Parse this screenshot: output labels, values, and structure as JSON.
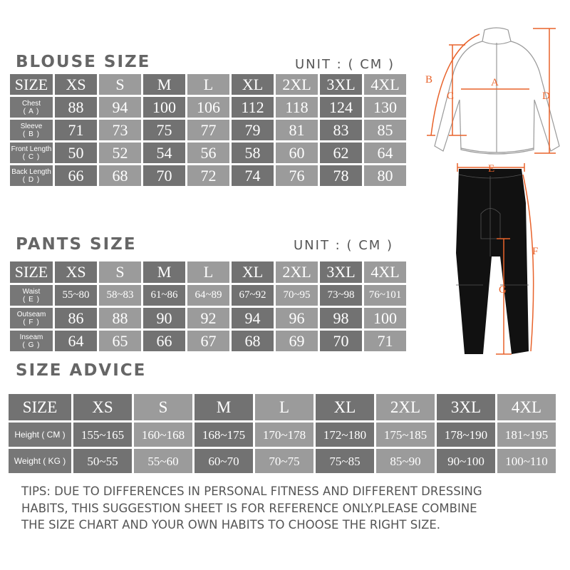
{
  "blouse": {
    "title": "BLOUSE SIZE",
    "unit": "UNIT : ( CM )",
    "header": [
      "SIZE",
      "XS",
      "S",
      "M",
      "L",
      "XL",
      "2XL",
      "3XL",
      "4XL"
    ],
    "rows": [
      {
        "label": "Chest",
        "code": "( A )",
        "values": [
          "88",
          "94",
          "100",
          "106",
          "112",
          "118",
          "124",
          "130"
        ]
      },
      {
        "label": "Sleeve",
        "code": "( B )",
        "values": [
          "71",
          "73",
          "75",
          "77",
          "79",
          "81",
          "83",
          "85"
        ]
      },
      {
        "label": "Front Length",
        "code": "( C )",
        "values": [
          "50",
          "52",
          "54",
          "56",
          "58",
          "60",
          "62",
          "64"
        ]
      },
      {
        "label": "Back Length",
        "code": "( D )",
        "values": [
          "66",
          "68",
          "70",
          "72",
          "74",
          "76",
          "78",
          "80"
        ]
      }
    ]
  },
  "pants": {
    "title": "PANTS SIZE",
    "unit": "UNIT : ( CM )",
    "header": [
      "SIZE",
      "XS",
      "S",
      "M",
      "L",
      "XL",
      "2XL",
      "3XL",
      "4XL"
    ],
    "rows": [
      {
        "label": "Waist",
        "code": "( E )",
        "values": [
          "55~80",
          "58~83",
          "61~86",
          "64~89",
          "67~92",
          "70~95",
          "73~98",
          "76~101"
        ]
      },
      {
        "label": "Outseam",
        "code": "( F )",
        "values": [
          "86",
          "88",
          "90",
          "92",
          "94",
          "96",
          "98",
          "100"
        ]
      },
      {
        "label": "Inseam",
        "code": "( G )",
        "values": [
          "64",
          "65",
          "66",
          "67",
          "68",
          "69",
          "70",
          "71"
        ]
      }
    ]
  },
  "advice": {
    "title": "SIZE ADVICE",
    "header": [
      "SIZE",
      "XS",
      "S",
      "M",
      "L",
      "XL",
      "2XL",
      "3XL",
      "4XL"
    ],
    "rows": [
      {
        "label": "Height ( CM )",
        "values": [
          "155~165",
          "160~168",
          "168~175",
          "170~178",
          "172~180",
          "175~185",
          "178~190",
          "181~195"
        ]
      },
      {
        "label": "Weight ( KG )",
        "values": [
          "50~55",
          "55~60",
          "60~70",
          "70~75",
          "75~85",
          "85~90",
          "90~100",
          "100~110"
        ]
      }
    ]
  },
  "tips": [
    "TIPS: DUE TO DIFFERENCES IN PERSONAL FITNESS AND DIFFERENT DRESSING",
    "HABITS, THIS SUGGESTION SHEET IS FOR REFERENCE ONLY.PLEASE COMBINE",
    "THE SIZE CHART AND YOUR OWN HABITS TO CHOOSE THE RIGHT SIZE."
  ],
  "diagram": {
    "labels": {
      "a": "A",
      "b": "B",
      "c": "C",
      "d": "D",
      "e": "E",
      "f": "F",
      "g": "G"
    },
    "colors": {
      "measure": "#e8622a",
      "dark_cell": "#727272",
      "light_cell": "#9b9b9b",
      "garment": "#111111"
    }
  }
}
